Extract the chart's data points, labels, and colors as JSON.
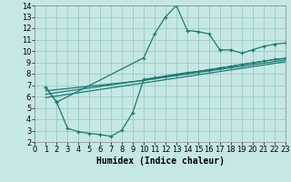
{
  "bg_color": "#c5e8e5",
  "grid_color": "#9dcac6",
  "line_color": "#1e7a70",
  "xlabel": "Humidex (Indice chaleur)",
  "xlabel_fontsize": 7,
  "tick_fontsize": 6,
  "xlim": [
    0,
    23
  ],
  "ylim": [
    2,
    14
  ],
  "xticks": [
    0,
    1,
    2,
    3,
    4,
    5,
    6,
    7,
    8,
    9,
    10,
    11,
    12,
    13,
    14,
    15,
    16,
    17,
    18,
    19,
    20,
    21,
    22,
    23
  ],
  "yticks": [
    2,
    3,
    4,
    5,
    6,
    7,
    8,
    9,
    10,
    11,
    12,
    13,
    14
  ],
  "series": [
    {
      "x": [
        1,
        2,
        10,
        11,
        12,
        13,
        14,
        15,
        16,
        17,
        18,
        19,
        20,
        21,
        22,
        23
      ],
      "y": [
        6.8,
        5.5,
        9.4,
        11.5,
        13.0,
        14.0,
        11.8,
        11.7,
        11.5,
        10.1,
        10.1,
        9.8,
        10.1,
        10.4,
        10.6,
        10.7
      ],
      "marker": true,
      "lw": 0.9
    },
    {
      "x": [
        1,
        2,
        3,
        4,
        5,
        6,
        7,
        8,
        9,
        10,
        11,
        12,
        13,
        14,
        15,
        16,
        17,
        18,
        19,
        20,
        21,
        22,
        23
      ],
      "y": [
        6.8,
        5.5,
        3.2,
        2.9,
        2.75,
        2.65,
        2.5,
        3.05,
        4.6,
        7.5,
        7.65,
        7.8,
        7.95,
        8.1,
        8.2,
        8.35,
        8.5,
        8.65,
        8.8,
        8.95,
        9.1,
        9.25,
        9.35
      ],
      "marker": true,
      "lw": 0.9
    },
    {
      "x": [
        1,
        10,
        14,
        15,
        17,
        19,
        20,
        21,
        22,
        23
      ],
      "y": [
        6.5,
        7.4,
        8.05,
        8.2,
        8.5,
        8.8,
        8.95,
        9.1,
        9.25,
        9.35
      ],
      "marker": false,
      "lw": 0.9
    },
    {
      "x": [
        1,
        23
      ],
      "y": [
        5.9,
        9.05
      ],
      "marker": false,
      "lw": 0.9
    },
    {
      "x": [
        1,
        23
      ],
      "y": [
        6.2,
        9.2
      ],
      "marker": false,
      "lw": 0.9
    }
  ]
}
